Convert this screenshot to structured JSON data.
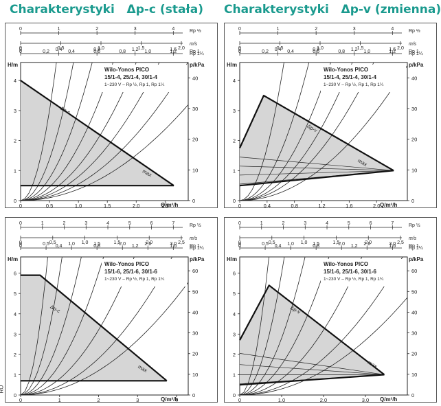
{
  "headings": [
    "Charakterystyki   Δp-c (stała)",
    "Charakterystyki   Δp-v (zmienna)"
  ],
  "margin_text": "RO",
  "chart_data": [
    {
      "type": "line",
      "mode": "dp-c",
      "title": "Wilo-Yonos PICO",
      "subtitle": "15/1-4, 25/1-4, 30/1-4",
      "caption": "1~230 V – Rp ½, Rp 1, Rp 1¼",
      "xlabel": "Q/m³/h",
      "ylabel": "H/m",
      "y2label": "p/kPa",
      "xlim": [
        0,
        2.9
      ],
      "ylim": [
        0,
        4.6
      ],
      "y2lim": [
        0,
        45
      ],
      "x_ticks": [
        0,
        0.5,
        1.0,
        1.5,
        2.0,
        2.5
      ],
      "x_tick_labels": [
        "0",
        "0,5",
        "1,0",
        "1,5",
        "2,0",
        "2,5"
      ],
      "y_ticks": [
        0,
        1,
        2,
        3,
        4
      ],
      "y2_ticks": [
        0,
        10,
        20,
        30,
        40
      ],
      "top_scales": [
        {
          "unit": "Rp ½",
          "ticks": [
            0,
            1,
            2,
            3,
            4
          ],
          "labels": [
            "0",
            "1",
            "2",
            "3",
            "4"
          ]
        },
        {
          "unit": "m/s",
          "ticks": [
            0,
            0.5,
            1.0,
            1.5,
            2.0
          ],
          "labels": [
            "0",
            "0,5",
            "1,0",
            "1,5",
            "2,0"
          ]
        },
        {
          "unit": "Rp 1",
          "ticks": [
            0,
            0.4,
            0.8,
            1.2,
            1.6
          ],
          "labels": [
            "0",
            "0,4",
            "0,8",
            "1,2",
            "1,6"
          ]
        },
        {
          "unit": "Rp 1¼",
          "ticks": [
            0,
            0.2,
            0.4,
            0.6,
            0.8,
            1.0,
            1.2
          ],
          "labels": [
            "0",
            "0,2",
            "0,4",
            "0,6",
            "0,8",
            "1,0",
            "1,2"
          ]
        }
      ],
      "area": [
        [
          0,
          4.0
        ],
        [
          2.65,
          0.5
        ],
        [
          0,
          0.5
        ]
      ],
      "max_curve": [
        [
          0,
          4.0
        ],
        [
          2.65,
          0.5
        ]
      ],
      "min_line": [
        [
          0,
          0.5
        ],
        [
          2.65,
          0.5
        ]
      ],
      "system_curves_k": [
        12,
        5.5,
        3,
        1.8,
        1.15,
        0.8,
        0.55,
        0.38
      ],
      "labels": {
        "dp": "Δp-c",
        "dp_at": [
          0.68,
          3.05
        ],
        "max": "max",
        "max_at": [
          2.1,
          0.95
        ]
      }
    },
    {
      "type": "line",
      "mode": "dp-v",
      "title": "Wilo-Yonos PICO",
      "subtitle": "15/1-4, 25/1-4, 30/1-4",
      "caption": "1~230 V – Rp ½, Rp 1, Rp 1¼",
      "xlabel": "Q/m³/h",
      "ylabel": "H/m",
      "y2label": "p/kPa",
      "xlim": [
        0,
        2.45
      ],
      "ylim": [
        0,
        4.6
      ],
      "y2lim": [
        0,
        45
      ],
      "x_ticks": [
        0,
        0.4,
        0.8,
        1.2,
        1.6,
        2.0
      ],
      "x_tick_labels": [
        "0",
        "0,4",
        "0,8",
        "1,2",
        "1,6",
        "2,0"
      ],
      "y_ticks": [
        0,
        1,
        2,
        3,
        4
      ],
      "y2_ticks": [
        0,
        10,
        20,
        30,
        40
      ],
      "top_scales": [
        {
          "unit": "Rp ½",
          "ticks": [
            0,
            1,
            2,
            3,
            4
          ],
          "labels": [
            "0",
            "1",
            "2",
            "3",
            "4"
          ]
        },
        {
          "unit": "m/s",
          "ticks": [
            0,
            0.5,
            1.0,
            1.5,
            2.0
          ],
          "labels": [
            "0",
            "0,5",
            "1,0",
            "1,5",
            "2,0"
          ]
        },
        {
          "unit": "Rp 1",
          "ticks": [
            0,
            0.4,
            0.8,
            1.2,
            1.6
          ],
          "labels": [
            "0",
            "0,4",
            "0,8",
            "1,2",
            "1,6"
          ]
        },
        {
          "unit": "Rp 1¼",
          "ticks": [
            0,
            0.2,
            0.4,
            0.6,
            0.8,
            1.0,
            1.2
          ],
          "labels": [
            "0",
            "0,2",
            "0,4",
            "0,6",
            "0,8",
            "1,0",
            "1,2"
          ]
        }
      ],
      "area": [
        [
          0,
          1.75
        ],
        [
          0.35,
          3.5
        ],
        [
          2.25,
          1.0
        ],
        [
          0,
          0.5
        ]
      ],
      "max_curve": [
        [
          0,
          1.75
        ],
        [
          0.35,
          3.5
        ],
        [
          2.25,
          1.0
        ]
      ],
      "min_line": [
        [
          0,
          0.5
        ],
        [
          2.25,
          1.0
        ]
      ],
      "inner_lines": [
        [
          [
            0,
            0.55
          ],
          [
            2.25,
            1.0
          ]
        ],
        [
          [
            0,
            0.85
          ],
          [
            2.25,
            1.0
          ]
        ],
        [
          [
            0,
            1.15
          ],
          [
            2.25,
            1.0
          ]
        ],
        [
          [
            0,
            1.45
          ],
          [
            2.25,
            1.0
          ]
        ],
        [
          [
            0.35,
            3.5
          ],
          [
            2.25,
            1.0
          ]
        ]
      ],
      "system_curves_k": [
        11,
        4.5,
        2.6,
        1.7,
        1.2,
        0.75
      ],
      "labels": {
        "dp": "Δp-v",
        "dp_at": [
          0.98,
          2.45
        ],
        "max": "max",
        "max_at": [
          1.72,
          1.3
        ]
      }
    },
    {
      "type": "line",
      "mode": "dp-c",
      "title": "Wilo-Yonos PICO",
      "subtitle": "15/1-6, 25/1-6, 30/1-6",
      "caption": "1~230 V – Rp ½, Rp 1, Rp 1¼",
      "xlabel": "Q/m³/h",
      "ylabel": "H/m",
      "y2label": "p/kPa",
      "xlim": [
        0,
        4.3
      ],
      "ylim": [
        0,
        6.8
      ],
      "y2lim": [
        0,
        66.7
      ],
      "x_ticks": [
        0,
        1,
        2,
        3,
        4
      ],
      "x_tick_labels": [
        "0",
        "1",
        "2",
        "3",
        "4"
      ],
      "y_ticks": [
        0,
        1,
        2,
        3,
        4,
        5,
        6
      ],
      "y2_ticks": [
        0,
        10,
        20,
        30,
        40,
        50,
        60
      ],
      "top_scales": [
        {
          "unit": "Rp ½",
          "ticks": [
            0,
            1,
            2,
            3,
            4,
            5,
            6,
            7
          ],
          "labels": [
            "0",
            "1",
            "2",
            "3",
            "4",
            "5",
            "6",
            "7"
          ]
        },
        {
          "unit": "m/s",
          "ticks": [
            0,
            0.5,
            1.0,
            1.5,
            2.0,
            2.5
          ],
          "labels": [
            "0",
            "0,5",
            "1,0",
            "1,5",
            "2,0",
            "2,5"
          ]
        },
        {
          "unit": "Rp 1",
          "ticks": [
            0,
            0.5,
            1.0,
            1.5,
            2.0,
            2.5,
            3.0
          ],
          "labels": [
            "0",
            "0,5",
            "1,0",
            "1,5",
            "2,0",
            "2,5",
            "3,0"
          ]
        },
        {
          "unit": "Rp 1¼",
          "ticks": [
            0,
            0.4,
            0.8,
            1.2,
            1.6
          ],
          "labels": [
            "0",
            "0,4",
            "0,8",
            "1,2",
            "1,6"
          ]
        }
      ],
      "area": [
        [
          0,
          5.9
        ],
        [
          0.5,
          5.9
        ],
        [
          3.75,
          0.7
        ],
        [
          0,
          0.7
        ]
      ],
      "max_curve": [
        [
          0,
          5.9
        ],
        [
          0.5,
          5.9
        ],
        [
          3.75,
          0.7
        ]
      ],
      "min_line": [
        [
          0,
          0.7
        ],
        [
          3.75,
          0.7
        ]
      ],
      "system_curves_k": [
        14,
        6,
        2.8,
        1.5,
        0.8,
        0.45,
        0.3
      ],
      "labels": {
        "dp": "Δp-c",
        "dp_at": [
          0.75,
          4.3
        ],
        "max": "max",
        "max_at": [
          3.0,
          1.35
        ]
      }
    },
    {
      "type": "line",
      "mode": "dp-v",
      "title": "Wilo-Yonos PICO",
      "subtitle": "15/1-6, 25/1-6, 30/1-6",
      "caption": "1~230 V – Rp ½, Rp 1, Rp 1¼",
      "xlabel": "Q/m³/h",
      "ylabel": "H/m",
      "y2label": "p/kPa",
      "xlim": [
        0,
        4.0
      ],
      "ylim": [
        0,
        6.8
      ],
      "y2lim": [
        0,
        66.7
      ],
      "x_ticks": [
        0,
        1.0,
        2.0,
        3.0
      ],
      "x_tick_labels": [
        "0",
        "1,0",
        "2,0",
        "3,0"
      ],
      "y_ticks": [
        0,
        1,
        2,
        3,
        4,
        5,
        6
      ],
      "y2_ticks": [
        0,
        10,
        20,
        30,
        40,
        50,
        60
      ],
      "top_scales": [
        {
          "unit": "Rp ½",
          "ticks": [
            0,
            1,
            2,
            3,
            4,
            5,
            6,
            7
          ],
          "labels": [
            "0",
            "1",
            "2",
            "3",
            "4",
            "5",
            "6",
            "7"
          ]
        },
        {
          "unit": "m/s",
          "ticks": [
            0,
            0.5,
            1.0,
            1.5,
            2.0,
            2.5
          ],
          "labels": [
            "0",
            "0,5",
            "1,0",
            "1,5",
            "2,0",
            "2,5"
          ]
        },
        {
          "unit": "Rp 1",
          "ticks": [
            0,
            0.5,
            1.0,
            1.5,
            2.0,
            2.5,
            3.0
          ],
          "labels": [
            "0",
            "0,5",
            "1,0",
            "1,5",
            "2,0",
            "2,5",
            "3,0"
          ]
        },
        {
          "unit": "Rp 1¼",
          "ticks": [
            0,
            0.4,
            0.8,
            1.2,
            1.6
          ],
          "labels": [
            "0",
            "0,4",
            "0,8",
            "1,2",
            "1,6"
          ]
        }
      ],
      "area": [
        [
          0,
          2.7
        ],
        [
          0.7,
          5.4
        ],
        [
          3.45,
          1.0
        ],
        [
          0,
          0.5
        ]
      ],
      "max_curve": [
        [
          0,
          2.7
        ],
        [
          0.7,
          5.4
        ],
        [
          3.45,
          1.0
        ]
      ],
      "min_line": [
        [
          0,
          0.5
        ],
        [
          3.45,
          1.0
        ]
      ],
      "inner_lines": [
        [
          [
            0,
            0.55
          ],
          [
            3.45,
            1.0
          ]
        ],
        [
          [
            0,
            1.0
          ],
          [
            3.45,
            1.0
          ]
        ],
        [
          [
            0,
            1.5
          ],
          [
            3.45,
            1.0
          ]
        ],
        [
          [
            0,
            2.05
          ],
          [
            3.45,
            1.0
          ]
        ],
        [
          [
            0.7,
            5.4
          ],
          [
            3.45,
            1.0
          ]
        ]
      ],
      "system_curves_k": [
        14,
        6,
        2.8,
        1.5,
        0.8,
        0.45,
        0.3
      ],
      "labels": {
        "dp": "Δp-v",
        "dp_at": [
          1.2,
          4.25
        ],
        "max": "max",
        "max_at": [
          3.05,
          1.55
        ]
      }
    }
  ]
}
